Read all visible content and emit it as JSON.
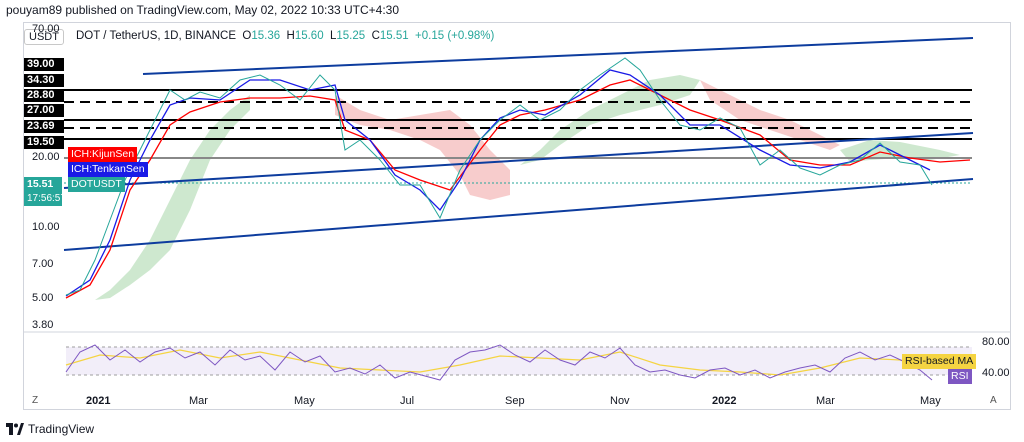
{
  "header": {
    "published": "pouyam89 published on TradingView.com, May 02, 2022 10:33 UTC+4:30"
  },
  "currency_button": "USDT",
  "legend": {
    "symbol": "DOT / TetherUS, 1D, BINANCE",
    "o_label": "O",
    "o": "15.36",
    "h_label": "H",
    "h": "15.60",
    "l_label": "L",
    "l": "15.25",
    "c_label": "C",
    "c": "15.51",
    "change": "+0.15 (+0.98%)"
  },
  "price_labels": [
    "39.00",
    "34.30",
    "28.80",
    "27.00",
    "23.69",
    "19.50"
  ],
  "y_ticks": [
    "70.00",
    "20.00",
    "10.00",
    "7.00",
    "5.00",
    "3.80"
  ],
  "current_price": {
    "value": "15.51",
    "countdown": "17:56:57",
    "symbol_tag": "DOTUSDT"
  },
  "indicator_tags": {
    "kijun": "ICH:KijunSen",
    "tenkan": "ICH:TenkanSen"
  },
  "rsi": {
    "ticks": [
      "80.00",
      "40.00"
    ],
    "ma_label": "RSI-based MA",
    "rsi_label": "RSI"
  },
  "x_labels": [
    "2021",
    "Mar",
    "May",
    "Jul",
    "Sep",
    "Nov",
    "2022",
    "Mar",
    "May"
  ],
  "footer": {
    "brand": "TradingView"
  },
  "buttons": {
    "zoom": "Z",
    "auto": "A"
  },
  "colors": {
    "up": "#26a69a",
    "down": "#ef5350",
    "kijun": "#ff0000",
    "tenkan": "#1a1ae6",
    "trend": "#0d3c9e",
    "rsi": "#7e57c2",
    "rsi_ma": "#f5d442"
  },
  "chart_data": {
    "type": "line",
    "x": [
      "2021-01-01",
      "2021-01-15",
      "2021-02-01",
      "2021-02-15",
      "2021-03-01",
      "2021-03-15",
      "2021-04-01",
      "2021-04-15",
      "2021-05-01",
      "2021-05-15",
      "2021-06-01",
      "2021-06-15",
      "2021-07-01",
      "2021-07-20",
      "2021-08-01",
      "2021-08-15",
      "2021-09-01",
      "2021-09-15",
      "2021-10-01",
      "2021-10-15",
      "2021-11-04",
      "2021-11-20",
      "2021-12-01",
      "2021-12-15",
      "2022-01-01",
      "2022-01-15",
      "2022-02-01",
      "2022-02-15",
      "2022-03-01",
      "2022-03-15",
      "2022-04-01",
      "2022-04-15",
      "2022-05-02"
    ],
    "series": [
      {
        "name": "DOTUSDT",
        "values": [
          9.0,
          17.5,
          25.0,
          35.0,
          33.0,
          35.0,
          38.0,
          40.0,
          38.0,
          25.0,
          22.0,
          20.5,
          15.0,
          11.0,
          17.0,
          22.0,
          30.0,
          33.0,
          30.0,
          38.0,
          54.0,
          40.0,
          30.0,
          26.0,
          27.0,
          20.0,
          18.0,
          18.5,
          17.0,
          18.0,
          21.0,
          19.0,
          15.51
        ]
      }
    ],
    "y_scale": "log",
    "ylim": [
      3.8,
      70
    ],
    "horizontal_levels": [
      39.0,
      34.3,
      28.8,
      27.0,
      23.69,
      19.5
    ],
    "current_price": 15.51,
    "rsi_ticks": [
      80,
      40
    ],
    "grid": true
  }
}
